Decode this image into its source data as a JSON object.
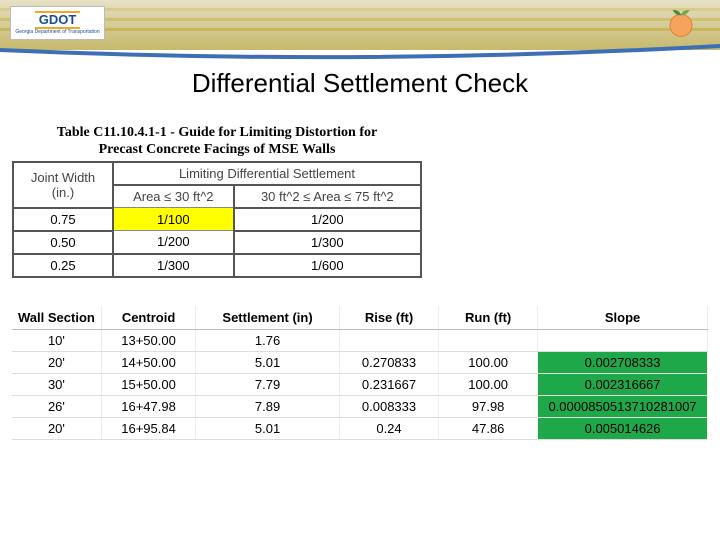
{
  "header": {
    "logo_text": "GDOT",
    "logo_tagline": "Georgia Department of Transportation",
    "band_colors": {
      "top": "#e8e2c8",
      "bottom": "#c7b96d"
    },
    "stripe_colors": [
      "#d9cc8a",
      "#cfbf74",
      "#c7b560"
    ],
    "swoosh_color": "#3c6fb5",
    "peach_colors": {
      "body": "#f7a35c",
      "leaf": "#6fa84f"
    }
  },
  "title": "Differential Settlement Check",
  "table1": {
    "caption_line1": "Table C11.10.4.1-1 - Guide for Limiting Distortion for",
    "caption_line2": "Precast Concrete Facings of MSE Walls",
    "header": {
      "joint_label1": "Joint Width",
      "joint_label2": "(in.)",
      "span_label": "Limiting Differential Settlement",
      "area_col1": "Area ≤ 30 ft^2",
      "area_col2": "30 ft^2 ≤ Area ≤ 75 ft^2"
    },
    "rows": [
      {
        "jw": "0.75",
        "c1": "1/100",
        "c2": "1/200",
        "c1_highlight": true
      },
      {
        "jw": "0.50",
        "c1": "1/200",
        "c2": "1/300",
        "c1_highlight": false
      },
      {
        "jw": "0.25",
        "c1": "1/300",
        "c2": "1/600",
        "c1_highlight": false
      }
    ],
    "highlight_color": "#ffff00",
    "border_color": "#888888",
    "font_family": "Times New Roman"
  },
  "table2": {
    "columns": [
      "Wall Section",
      "Centroid",
      "Settlement (in)",
      "Rise (ft)",
      "Run (ft)",
      "Slope"
    ],
    "rows": [
      {
        "ws": "10'",
        "cen": "13+50.00",
        "set": "1.76",
        "rise": "",
        "run": "",
        "slope": ""
      },
      {
        "ws": "20'",
        "cen": "14+50.00",
        "set": "5.01",
        "rise": "0.270833",
        "run": "100.00",
        "slope": "0.002708333"
      },
      {
        "ws": "30'",
        "cen": "15+50.00",
        "set": "7.79",
        "rise": "0.231667",
        "run": "100.00",
        "slope": "0.002316667"
      },
      {
        "ws": "26'",
        "cen": "16+47.98",
        "set": "7.89",
        "rise": "0.008333",
        "run": "97.98",
        "slope": "0.0000850513710281007"
      },
      {
        "ws": "20'",
        "cen": "16+95.84",
        "set": "5.01",
        "rise": "0.24",
        "run": "47.86",
        "slope": "0.005014626"
      }
    ],
    "slope_highlight_color": "#1fa84a",
    "grid_color": "#dddddd",
    "header_fontweight": "bold"
  },
  "colors": {
    "background": "#ffffff",
    "text": "#000000"
  }
}
